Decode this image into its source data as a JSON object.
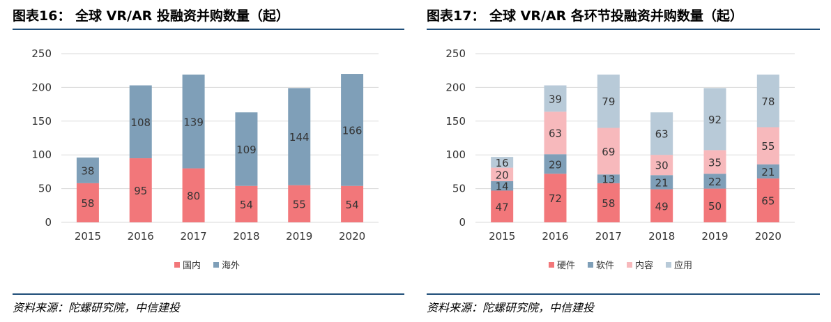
{
  "figures": [
    {
      "title": "图表16： 全球 VR/AR 投融资并购数量（起）",
      "source": "资料来源：陀螺研究院，中信建投"
    },
    {
      "title": "图表17： 全球 VR/AR 各环节投融资并购数量（起）",
      "source": "资料来源：陀螺研究院，中信建投"
    }
  ],
  "chart_data": [
    {
      "type": "bar",
      "stacked": true,
      "title": "全球 VR/AR 投融资并购数量（起）",
      "categories": [
        "2015",
        "2016",
        "2017",
        "2018",
        "2019",
        "2020"
      ],
      "series": [
        {
          "name": "国内",
          "color": "#f2777a",
          "values": [
            58,
            95,
            80,
            54,
            55,
            54
          ]
        },
        {
          "name": "海外",
          "color": "#7f9fb8",
          "values": [
            38,
            108,
            139,
            109,
            144,
            166
          ]
        }
      ],
      "ylim": [
        0,
        250
      ],
      "yticks": [
        "0",
        "50",
        "100",
        "150",
        "200",
        "250"
      ],
      "grid": true,
      "legend": "bottom"
    },
    {
      "type": "bar",
      "stacked": true,
      "title": "全球 VR/AR 各环节投融资并购数量（起）",
      "categories": [
        "2015",
        "2016",
        "2017",
        "2018",
        "2019",
        "2020"
      ],
      "series": [
        {
          "name": "硬件",
          "color": "#f2777a",
          "values": [
            47,
            72,
            58,
            49,
            50,
            65
          ]
        },
        {
          "name": "软件",
          "color": "#7f9fb8",
          "values": [
            14,
            29,
            13,
            21,
            22,
            21
          ]
        },
        {
          "name": "内容",
          "color": "#f7b9bc",
          "values": [
            20,
            63,
            69,
            30,
            35,
            55
          ]
        },
        {
          "name": "应用",
          "color": "#b8cad8",
          "values": [
            16,
            39,
            79,
            63,
            92,
            78
          ]
        }
      ],
      "ylim": [
        0,
        250
      ],
      "yticks": [
        "0",
        "50",
        "100",
        "150",
        "200",
        "250"
      ],
      "grid": true,
      "legend": "bottom"
    }
  ]
}
